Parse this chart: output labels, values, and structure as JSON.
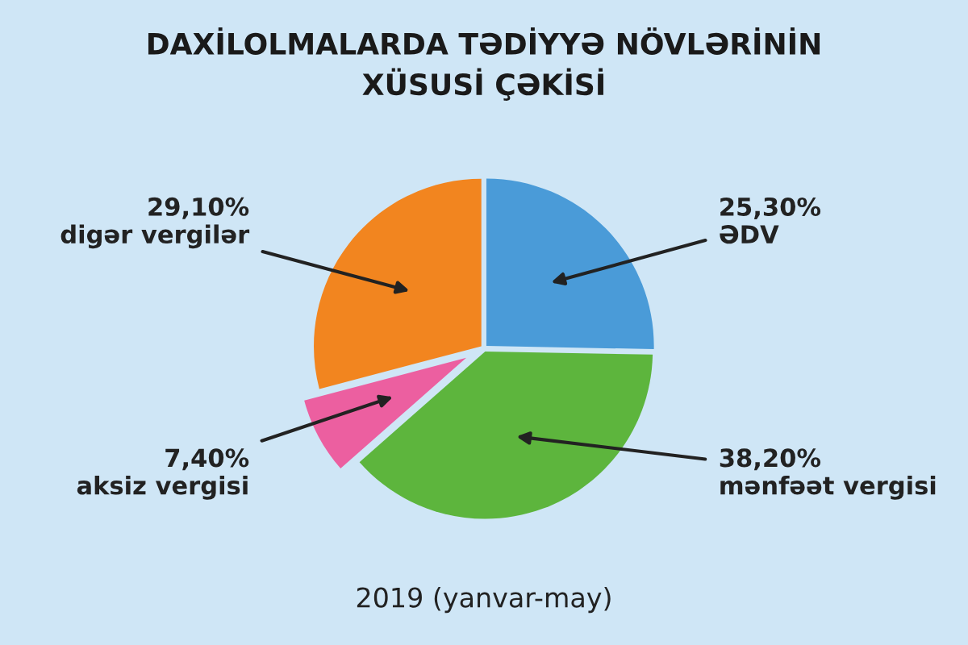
{
  "chart_data": {
    "type": "pie",
    "title": "DAXİLOLMALARDA TƏDİYYƏ NÖVLƏRİNİN\nXÜSUSİ ÇƏKİSİ",
    "categories": [
      "ƏDV",
      "mənfəət vergisi",
      "aksiz vergisi",
      "digər vergilər"
    ],
    "values": [
      25.3,
      38.2,
      7.4,
      29.1
    ],
    "value_labels": [
      "25,30%",
      "38,20%",
      "7,40%",
      "29,10%"
    ],
    "colors": [
      "#4a9bd8",
      "#5db53d",
      "#ec5fa0",
      "#f2851f"
    ],
    "annotations": [
      "2019 (yanvar-may)"
    ],
    "legend": false
  }
}
